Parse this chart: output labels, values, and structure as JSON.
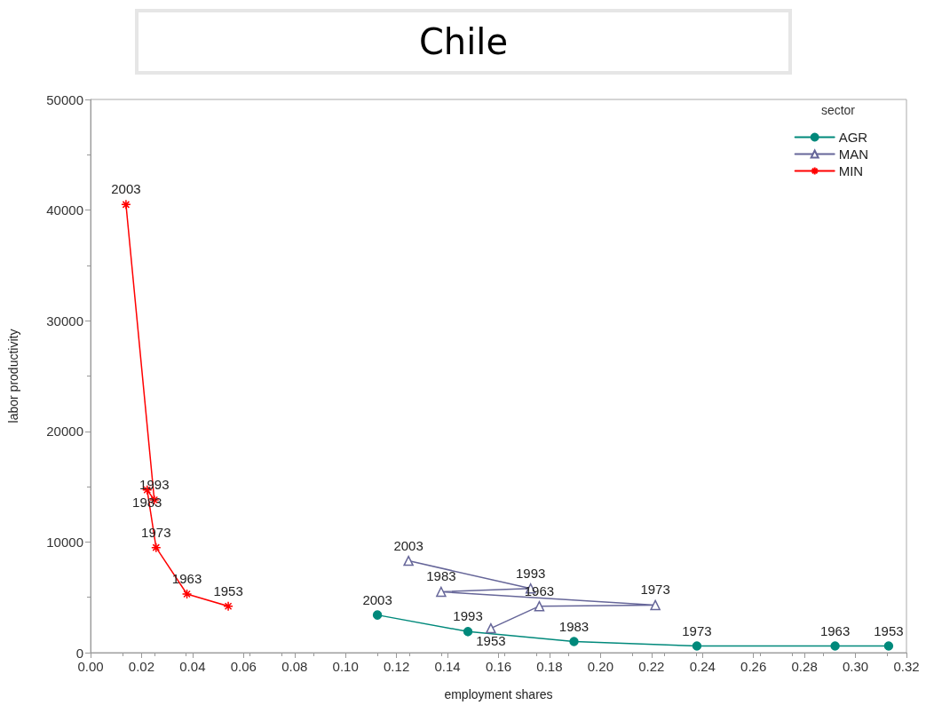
{
  "chart_data": {
    "type": "line",
    "title": "Chile",
    "xlabel": "employment shares",
    "ylabel": "labor productivity",
    "legend_title": "sector",
    "xlim": [
      0,
      0.32
    ],
    "xticks": [
      {
        "value": 0,
        "label": "0.00"
      },
      {
        "value": 0.02,
        "label": "0.02"
      },
      {
        "value": 0.04,
        "label": "0.04"
      },
      {
        "value": 0.06,
        "label": "0.06"
      },
      {
        "value": 0.08,
        "label": "0.08"
      },
      {
        "value": 0.1,
        "label": "0.10"
      },
      {
        "value": 0.12,
        "label": "0.12"
      },
      {
        "value": 0.14,
        "label": "0.14"
      },
      {
        "value": 0.16,
        "label": "0.16"
      },
      {
        "value": 0.18,
        "label": "0.18"
      },
      {
        "value": 0.2,
        "label": "0.20"
      },
      {
        "value": 0.22,
        "label": "0.22"
      },
      {
        "value": 0.24,
        "label": "0.24"
      },
      {
        "value": 0.26,
        "label": "0.26"
      },
      {
        "value": 0.28,
        "label": "0.28"
      },
      {
        "value": 0.3,
        "label": "0.30"
      },
      {
        "value": 0.32,
        "label": "0.32"
      }
    ],
    "ylim": [
      0,
      50000
    ],
    "yticks": [
      0,
      10000,
      20000,
      30000,
      40000,
      50000
    ],
    "grid": false,
    "legend": "top right",
    "series": [
      {
        "name": "AGR",
        "color": "#00897b",
        "marker": "circle",
        "x": [
          0.1125,
          0.148,
          0.1896,
          0.2378,
          0.292,
          0.313
        ],
        "values": [
          3400,
          1900,
          1000,
          600,
          600,
          600
        ]
      },
      {
        "name": "MAN",
        "color": "#666699",
        "marker": "triangle",
        "x": [
          0.1247,
          0.1726,
          0.1375,
          0.2215,
          0.176,
          0.157
        ],
        "values": [
          8300,
          5800,
          5500,
          4300,
          4200,
          2200
        ]
      },
      {
        "name": "MIN",
        "color": "#ff0000",
        "marker": "cross",
        "x": [
          0.0139,
          0.025,
          0.0222,
          0.0257,
          0.0378,
          0.054
        ],
        "values": [
          40500,
          13800,
          14700,
          9500,
          5300,
          4200
        ]
      }
    ],
    "annotations": [
      {
        "text": "2003",
        "x": 0.1125,
        "y": 3400
      },
      {
        "text": "1993",
        "x": 0.148,
        "y": 1900
      },
      {
        "text": "1983",
        "x": 0.1896,
        "y": 1000
      },
      {
        "text": "1973",
        "x": 0.2378,
        "y": 600
      },
      {
        "text": "1963",
        "x": 0.292,
        "y": 600
      },
      {
        "text": "1953",
        "x": 0.313,
        "y": 600
      },
      {
        "text": "2003",
        "x": 0.1247,
        "y": 8300
      },
      {
        "text": "1993",
        "x": 0.1726,
        "y": 5800
      },
      {
        "text": "1983",
        "x": 0.1375,
        "y": 5500
      },
      {
        "text": "1973",
        "x": 0.2215,
        "y": 4300
      },
      {
        "text": "1963",
        "x": 0.176,
        "y": 4200
      },
      {
        "text": "1953",
        "x": 0.157,
        "y": 2200
      },
      {
        "text": "2003",
        "x": 0.0139,
        "y": 40500
      },
      {
        "text": "1993",
        "x": 0.025,
        "y": 13800
      },
      {
        "text": "1983",
        "x": 0.0222,
        "y": 14700
      },
      {
        "text": "1973",
        "x": 0.0257,
        "y": 9500
      },
      {
        "text": "1963",
        "x": 0.0378,
        "y": 5300
      },
      {
        "text": "1953",
        "x": 0.054,
        "y": 4200
      }
    ]
  }
}
